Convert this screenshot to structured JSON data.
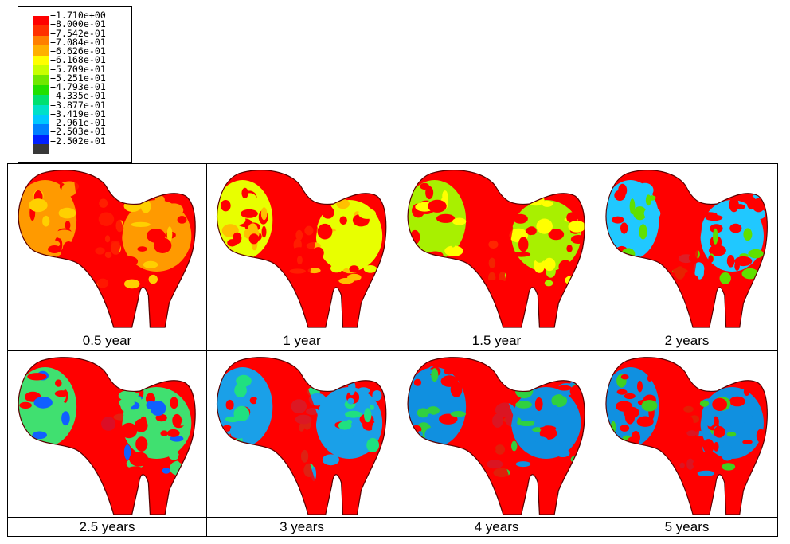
{
  "legend": {
    "labels": [
      "+1.710e+00",
      "+8.000e-01",
      "+7.542e-01",
      "+7.084e-01",
      "+6.626e-01",
      "+6.168e-01",
      "+5.709e-01",
      "+5.251e-01",
      "+4.793e-01",
      "+4.335e-01",
      "+3.877e-01",
      "+3.419e-01",
      "+2.961e-01",
      "+2.503e-01",
      "+2.502e-01"
    ],
    "colors": [
      "#ff0000",
      "#ff3000",
      "#ff7f00",
      "#ffb000",
      "#ffff00",
      "#c8ff00",
      "#70e800",
      "#20e000",
      "#00e070",
      "#00e0c8",
      "#00c8ff",
      "#0080ff",
      "#0020ff",
      "#383838"
    ]
  },
  "panels": [
    {
      "caption": "0.5 year",
      "base": "#ff9a00",
      "accent": "#ff0000",
      "cool": "#ffd000"
    },
    {
      "caption": "1 year",
      "base": "#e8ff00",
      "accent": "#ff0000",
      "cool": "#ffc000"
    },
    {
      "caption": "1.5 year",
      "base": "#a8f000",
      "accent": "#ff0000",
      "cool": "#ffff00"
    },
    {
      "caption": "2 years",
      "base": "#20c8ff",
      "accent": "#ff0000",
      "cool": "#60e000"
    },
    {
      "caption": "2.5 years",
      "base": "#40e070",
      "accent": "#ff0000",
      "cool": "#1060ff"
    },
    {
      "caption": "3 years",
      "base": "#1aa0e8",
      "accent": "#ff0000",
      "cool": "#20e080"
    },
    {
      "caption": "4 years",
      "base": "#1090e0",
      "accent": "#ff0000",
      "cool": "#30d040"
    },
    {
      "caption": "5 years",
      "base": "#1090e0",
      "accent": "#ff0000",
      "cool": "#40d020"
    }
  ]
}
